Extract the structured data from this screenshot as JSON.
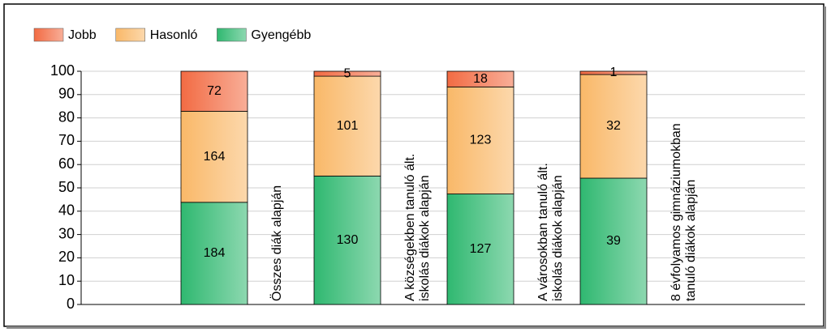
{
  "chart_data": {
    "type": "bar",
    "stacking": "percent",
    "categories": [
      "Összes diák alapján",
      "A községekben tanuló ált.\niskolás diákok alapján",
      "A városokban tanuló ált.\niskolás diákok alapján",
      "8 évfolyamos gimnáziumokban\ntanuló diákok alapján"
    ],
    "series": [
      {
        "name": "Jobb",
        "color": "#f26b43",
        "values": [
          72,
          5,
          18,
          1
        ]
      },
      {
        "name": "Hasonló",
        "color": "#f9b868",
        "values": [
          164,
          101,
          123,
          32
        ]
      },
      {
        "name": "Gyengébb",
        "color": "#2fb870",
        "values": [
          184,
          130,
          127,
          39
        ]
      }
    ],
    "ylim": [
      0,
      100
    ],
    "yticks": [
      0,
      10,
      20,
      30,
      40,
      50,
      60,
      70,
      80,
      90,
      100
    ],
    "grid": true,
    "legend": "top-left"
  }
}
